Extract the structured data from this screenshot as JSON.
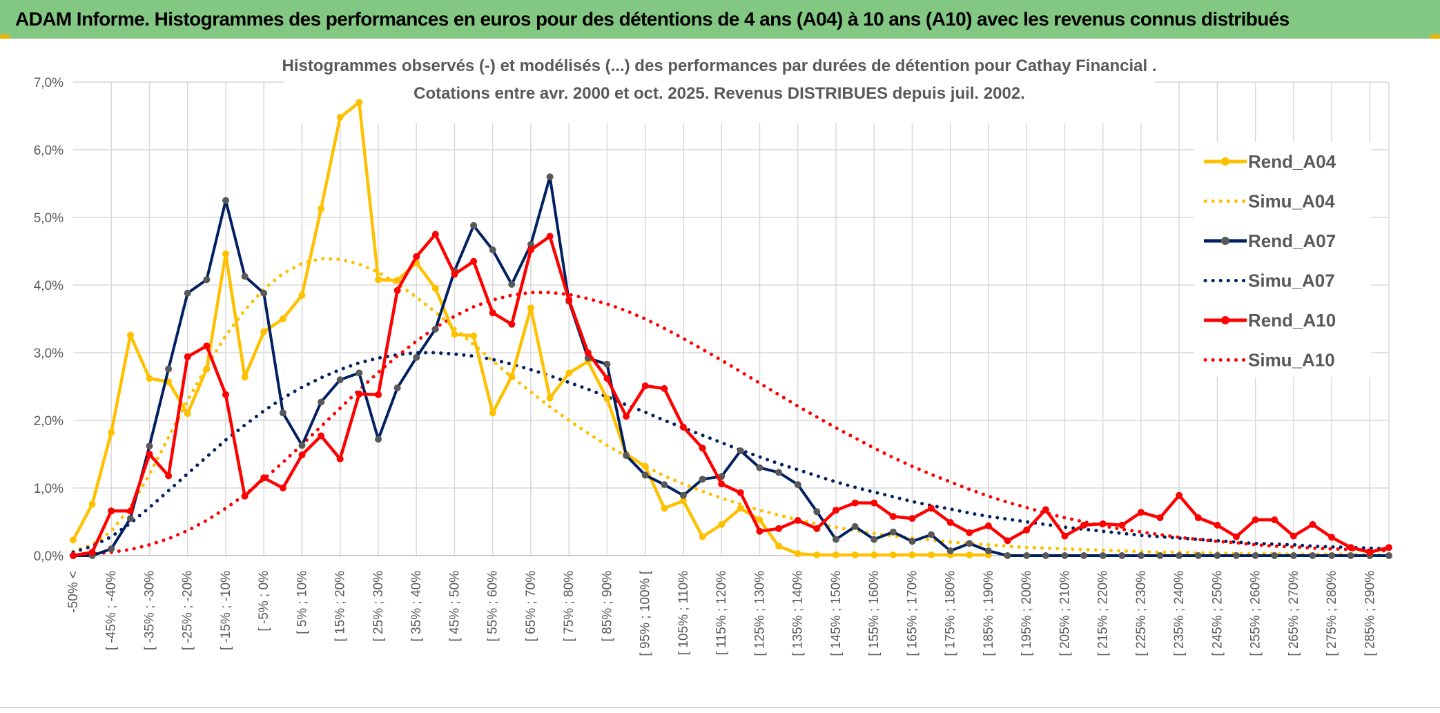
{
  "page_title": "ADAM Informe. Histogrammes des performances en euros pour des détentions de 4 ans (A04) à 10 ans (A10) avec les revenus connus distribués",
  "chart_data": {
    "type": "line",
    "title": "Histogrammes observés (-) et modélisés (...) des performances par durées de détention pour Cathay Financial .",
    "subtitle": "Cotations entre avr. 2000 et oct. 2025. Revenus DISTRIBUES depuis juil. 2002.",
    "xlabel": "",
    "ylabel": "",
    "ylim": [
      0,
      7
    ],
    "y_ticks": [
      "0,0%",
      "1,0%",
      "2,0%",
      "3,0%",
      "4,0%",
      "5,0%",
      "6,0%",
      "7,0%"
    ],
    "grid": true,
    "legend_position": "right",
    "categories": [
      "-50% <",
      "[ -50% ; -45% [",
      "[ -45% ; -40% [",
      "[ -40% ; -35% [",
      "[ -35% ; -30% [",
      "[ -30% ; -25% [",
      "[ -25% ; -20% [",
      "[ -20% ; -15% [",
      "[ -15% ; -10% [",
      "[ -10% ; -5% [",
      "[ -5% ; 0%",
      "[ 0% ; 5% [",
      "[ 5% ; 10%",
      "[ 10% ; 15% [",
      "[ 15% ; 20%",
      "[ 20% ; 25% [",
      "[ 25% ; 30%",
      "[ 30% ; 35% [",
      "[ 35% ; 40%",
      "[ 40% ; 45% [",
      "[ 45% ; 50%",
      "[ 50% ; 55% [",
      "[ 55% ; 60%",
      "[ 60% ; 65% [",
      "[ 65% ; 70%",
      "[ 70% ; 75% [",
      "[ 75% ; 80%",
      "[ 80% ; 85% [",
      "[ 85% ; 90%",
      "[ 90% ; 95% [",
      "[ 95% ; 100% [",
      "[ 100% ; 105% [",
      "[ 105% ; 110% [",
      "[ 110% ; 115% [",
      "[ 115% ; 120% [",
      "[ 120% ; 125% [",
      "[ 125% ; 130% [",
      "[ 130% ; 135% [",
      "[ 135% ; 140% [",
      "[ 140% ; 145% [",
      "[ 145% ; 150% [",
      "[ 150% ; 155% [",
      "[ 155% ; 160% [",
      "[ 160% ; 165% [",
      "[ 165% ; 170% [",
      "[ 170% ; 175% [",
      "[ 175% ; 180% [",
      "[ 180% ; 185% [",
      "[ 185% ; 190% [",
      "[ 190% ; 195% [",
      "[ 195% ; 200% [",
      "[ 200% ; 205% [",
      "[ 205% ; 210% [",
      "[ 210% ; 215% [",
      "[ 215% ; 220% [",
      "[ 220% ; 225% [",
      "[ 225% ; 230% [",
      "[ 230% ; 235% [",
      "[ 235% ; 240% [",
      "[ 240% ; 245% [",
      "[ 245% ; 250% [",
      "[ 250% ; 255% [",
      "[ 255% ; 260% [",
      "[ 260% ; 265% [",
      "[ 265% ; 270% [",
      "[ 270% ; 275% [",
      "[ 275% ; 280% [",
      "[ 280% ; 285% [",
      "[ 285% ; 290% [",
      "[ 290% ; 295% ["
    ],
    "shown_labels": [
      "-50% <",
      "[ -45% ; -40%",
      "[ -35% ; -30%",
      "[ -25% ; -20%",
      "[ -15% ; -10%",
      "[ -5% ; 0%",
      "[ 5% ; 10%",
      "[ 15% ; 20%",
      "[ 25% ; 30%",
      "[ 35% ; 40%",
      "[ 45% ; 50%",
      "[ 55% ; 60%",
      "[ 65% ; 70%",
      "[ 75% ; 80%",
      "[ 85% ; 90%",
      "[ 95% ; 100% [",
      "[ 105% ; 110%",
      "[ 115% ; 120%",
      "[ 125% ; 130%",
      "[ 135% ; 140%",
      "[ 145% ; 150%",
      "[ 155% ; 160%",
      "[ 165% ; 170%",
      "[ 175% ; 180%",
      "[ 185% ; 190%",
      "[ 195% ; 200%",
      "[ 205% ; 210%",
      "[ 215% ; 220%",
      "[ 225% ; 230%",
      "[ 235% ; 240%",
      "[ 245% ; 250%",
      "[ 255% ; 260%",
      "[ 265% ; 270%",
      "[ 275% ; 280%",
      "[ 285% ; 290%"
    ],
    "series": [
      {
        "name": "Rend_A04",
        "style": "solid",
        "color": "#ffc000",
        "values": [
          0.23,
          0.76,
          1.82,
          3.26,
          2.62,
          2.57,
          2.1,
          2.76,
          4.46,
          2.64,
          3.31,
          3.5,
          3.85,
          5.13,
          6.48,
          6.7,
          4.08,
          4.07,
          4.33,
          3.95,
          3.27,
          3.25,
          2.11,
          2.65,
          3.66,
          2.33,
          2.7,
          2.87,
          2.32,
          1.5,
          1.32,
          0.7,
          0.81,
          0.28,
          0.46,
          0.7,
          0.53,
          0.14,
          0.03,
          0.01,
          0.01,
          0.01,
          0.01,
          0.01,
          0.01,
          0.01,
          0.01,
          0.01,
          0.01,
          null,
          null,
          null,
          null,
          null,
          null,
          null,
          null,
          null,
          null,
          null,
          null,
          null,
          null,
          null,
          null,
          null,
          null,
          null,
          null,
          null
        ]
      },
      {
        "name": "Simu_A04",
        "style": "dotted",
        "color": "#ffc000",
        "values": [
          0.06,
          0.16,
          0.36,
          0.72,
          1.2,
          1.75,
          2.29,
          2.8,
          3.25,
          3.63,
          3.94,
          4.17,
          4.32,
          4.39,
          4.38,
          4.31,
          4.19,
          4.02,
          3.82,
          3.6,
          3.36,
          3.12,
          2.88,
          2.64,
          2.42,
          2.2,
          2.0,
          1.81,
          1.63,
          1.47,
          1.32,
          1.18,
          1.06,
          0.95,
          0.85,
          0.76,
          0.67,
          0.6,
          0.53,
          0.47,
          0.42,
          0.37,
          0.33,
          0.29,
          0.26,
          0.23,
          0.2,
          0.18,
          0.16,
          0.14,
          0.12,
          0.11,
          0.1,
          0.09,
          0.08,
          0.07,
          0.06,
          0.05,
          0.05,
          0.04,
          0.04,
          0.03,
          0.03,
          0.03,
          0.02,
          0.02,
          0.02,
          0.02,
          0.01,
          0.01
        ]
      },
      {
        "name": "Rend_A07",
        "style": "solid",
        "color": "#002060",
        "values": [
          0.0,
          0.0,
          0.1,
          0.55,
          1.62,
          2.76,
          3.88,
          4.08,
          5.25,
          4.13,
          3.88,
          2.11,
          1.63,
          2.27,
          2.6,
          2.7,
          1.72,
          2.48,
          2.93,
          3.35,
          4.21,
          4.88,
          4.52,
          4.01,
          4.6,
          5.6,
          3.76,
          2.92,
          2.83,
          1.48,
          1.19,
          1.05,
          0.89,
          1.13,
          1.17,
          1.55,
          1.3,
          1.23,
          1.05,
          0.65,
          0.24,
          0.43,
          0.24,
          0.35,
          0.21,
          0.31,
          0.07,
          0.18,
          0.07,
          0.0,
          0.0,
          0.0,
          0.0,
          0.0,
          0.0,
          0.0,
          0.0,
          0.0,
          0.0,
          0.0,
          0.0,
          0.0,
          0.0,
          0.0,
          0.0,
          0.0,
          0.0,
          0.0,
          0.0,
          0.0
        ]
      },
      {
        "name": "Simu_A07",
        "style": "dotted",
        "color": "#002060",
        "values": [
          0.05,
          0.14,
          0.28,
          0.48,
          0.71,
          0.96,
          1.21,
          1.46,
          1.71,
          1.93,
          2.14,
          2.33,
          2.49,
          2.63,
          2.75,
          2.85,
          2.92,
          2.97,
          3.0,
          3.0,
          2.98,
          2.95,
          2.9,
          2.83,
          2.75,
          2.66,
          2.56,
          2.46,
          2.35,
          2.23,
          2.12,
          2.0,
          1.89,
          1.78,
          1.67,
          1.56,
          1.46,
          1.36,
          1.27,
          1.18,
          1.09,
          1.01,
          0.94,
          0.87,
          0.8,
          0.74,
          0.69,
          0.63,
          0.58,
          0.54,
          0.5,
          0.46,
          0.42,
          0.39,
          0.36,
          0.33,
          0.3,
          0.28,
          0.26,
          0.24,
          0.22,
          0.2,
          0.18,
          0.17,
          0.16,
          0.14,
          0.13,
          0.12,
          0.11,
          0.1
        ]
      },
      {
        "name": "Rend_A10",
        "style": "solid",
        "color": "#ff0000",
        "values": [
          0.0,
          0.05,
          0.66,
          0.66,
          1.5,
          1.18,
          2.94,
          3.1,
          2.38,
          0.88,
          1.15,
          1.0,
          1.49,
          1.77,
          1.43,
          2.39,
          2.38,
          3.92,
          4.42,
          4.75,
          4.16,
          4.35,
          3.59,
          3.42,
          4.52,
          4.72,
          3.78,
          3.0,
          2.62,
          2.06,
          2.51,
          2.47,
          1.9,
          1.59,
          1.06,
          0.93,
          0.36,
          0.4,
          0.52,
          0.4,
          0.67,
          0.78,
          0.78,
          0.58,
          0.55,
          0.7,
          0.49,
          0.34,
          0.44,
          0.22,
          0.38,
          0.68,
          0.29,
          0.45,
          0.47,
          0.45,
          0.64,
          0.56,
          0.89,
          0.56,
          0.45,
          0.28,
          0.53,
          0.53,
          0.29,
          0.46,
          0.27,
          0.12,
          0.05,
          0.12
        ]
      },
      {
        "name": "Simu_A10",
        "style": "dotted",
        "color": "#ff0000",
        "values": [
          0.01,
          0.02,
          0.05,
          0.09,
          0.16,
          0.25,
          0.37,
          0.52,
          0.7,
          0.9,
          1.13,
          1.38,
          1.64,
          1.91,
          2.18,
          2.45,
          2.71,
          2.95,
          3.17,
          3.37,
          3.54,
          3.68,
          3.78,
          3.85,
          3.89,
          3.89,
          3.86,
          3.8,
          3.72,
          3.62,
          3.5,
          3.36,
          3.21,
          3.05,
          2.89,
          2.72,
          2.55,
          2.38,
          2.21,
          2.05,
          1.89,
          1.74,
          1.59,
          1.45,
          1.32,
          1.2,
          1.09,
          0.98,
          0.88,
          0.79,
          0.71,
          0.63,
          0.56,
          0.5,
          0.44,
          0.39,
          0.35,
          0.31,
          0.27,
          0.24,
          0.21,
          0.19,
          0.16,
          0.14,
          0.13,
          0.11,
          0.1,
          0.09,
          0.08,
          0.07
        ]
      }
    ]
  }
}
